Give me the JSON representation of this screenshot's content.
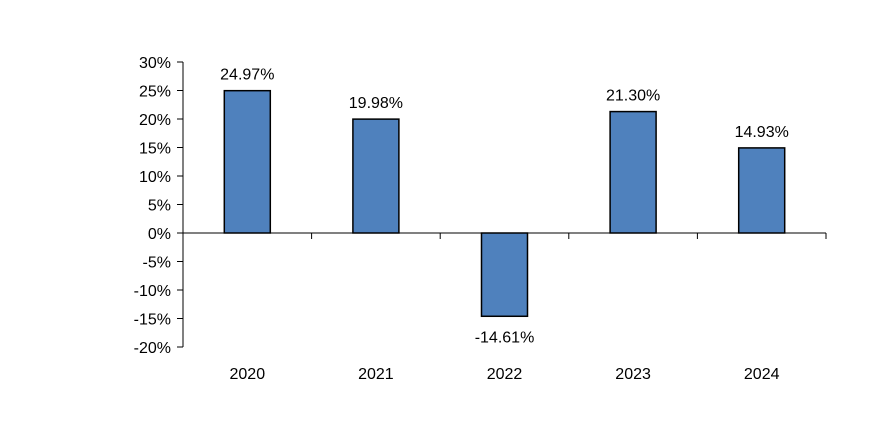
{
  "chart_data": {
    "type": "bar",
    "title": "",
    "xlabel": "",
    "ylabel": "",
    "categories": [
      "2020",
      "2021",
      "2022",
      "2023",
      "2024"
    ],
    "values": [
      24.97,
      19.98,
      -14.61,
      21.3,
      14.93
    ],
    "data_labels": [
      "24.97%",
      "19.98%",
      "-14.61%",
      "21.30%",
      "14.93%"
    ],
    "ylim": [
      -20,
      30
    ],
    "y_ticks": [
      30,
      25,
      20,
      15,
      10,
      5,
      0,
      -5,
      -10,
      -15,
      -20
    ],
    "y_tick_labels": [
      "30%",
      "25%",
      "20%",
      "15%",
      "10%",
      "5%",
      "0%",
      "-5%",
      "-10%",
      "-15%",
      "-20%"
    ],
    "grid": false,
    "legend": "none",
    "colors": {
      "bar_fill": "#4f81bd",
      "bar_stroke": "#000000",
      "axis": "#000000"
    }
  }
}
